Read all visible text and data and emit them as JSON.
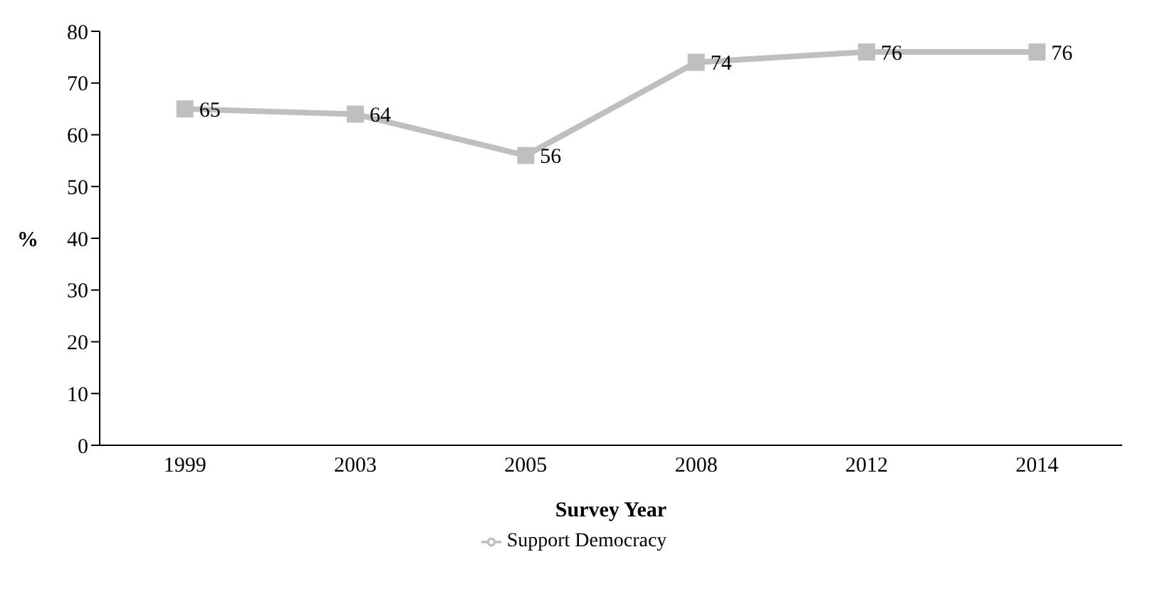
{
  "chart_data": {
    "type": "line",
    "xlabel": "Survey Year",
    "ylabel": "%",
    "categories": [
      "1999",
      "2003",
      "2005",
      "2008",
      "2012",
      "2014"
    ],
    "series": [
      {
        "name": "Support Democracy",
        "color": "#bfbfbf",
        "values": [
          65,
          64,
          56,
          74,
          76,
          76
        ]
      }
    ],
    "ylim": [
      0,
      80
    ],
    "yticks": [
      0,
      10,
      20,
      30,
      40,
      50,
      60,
      70,
      80
    ],
    "data_labels": true,
    "marker": "square",
    "legend": "bottom",
    "grid": false
  }
}
